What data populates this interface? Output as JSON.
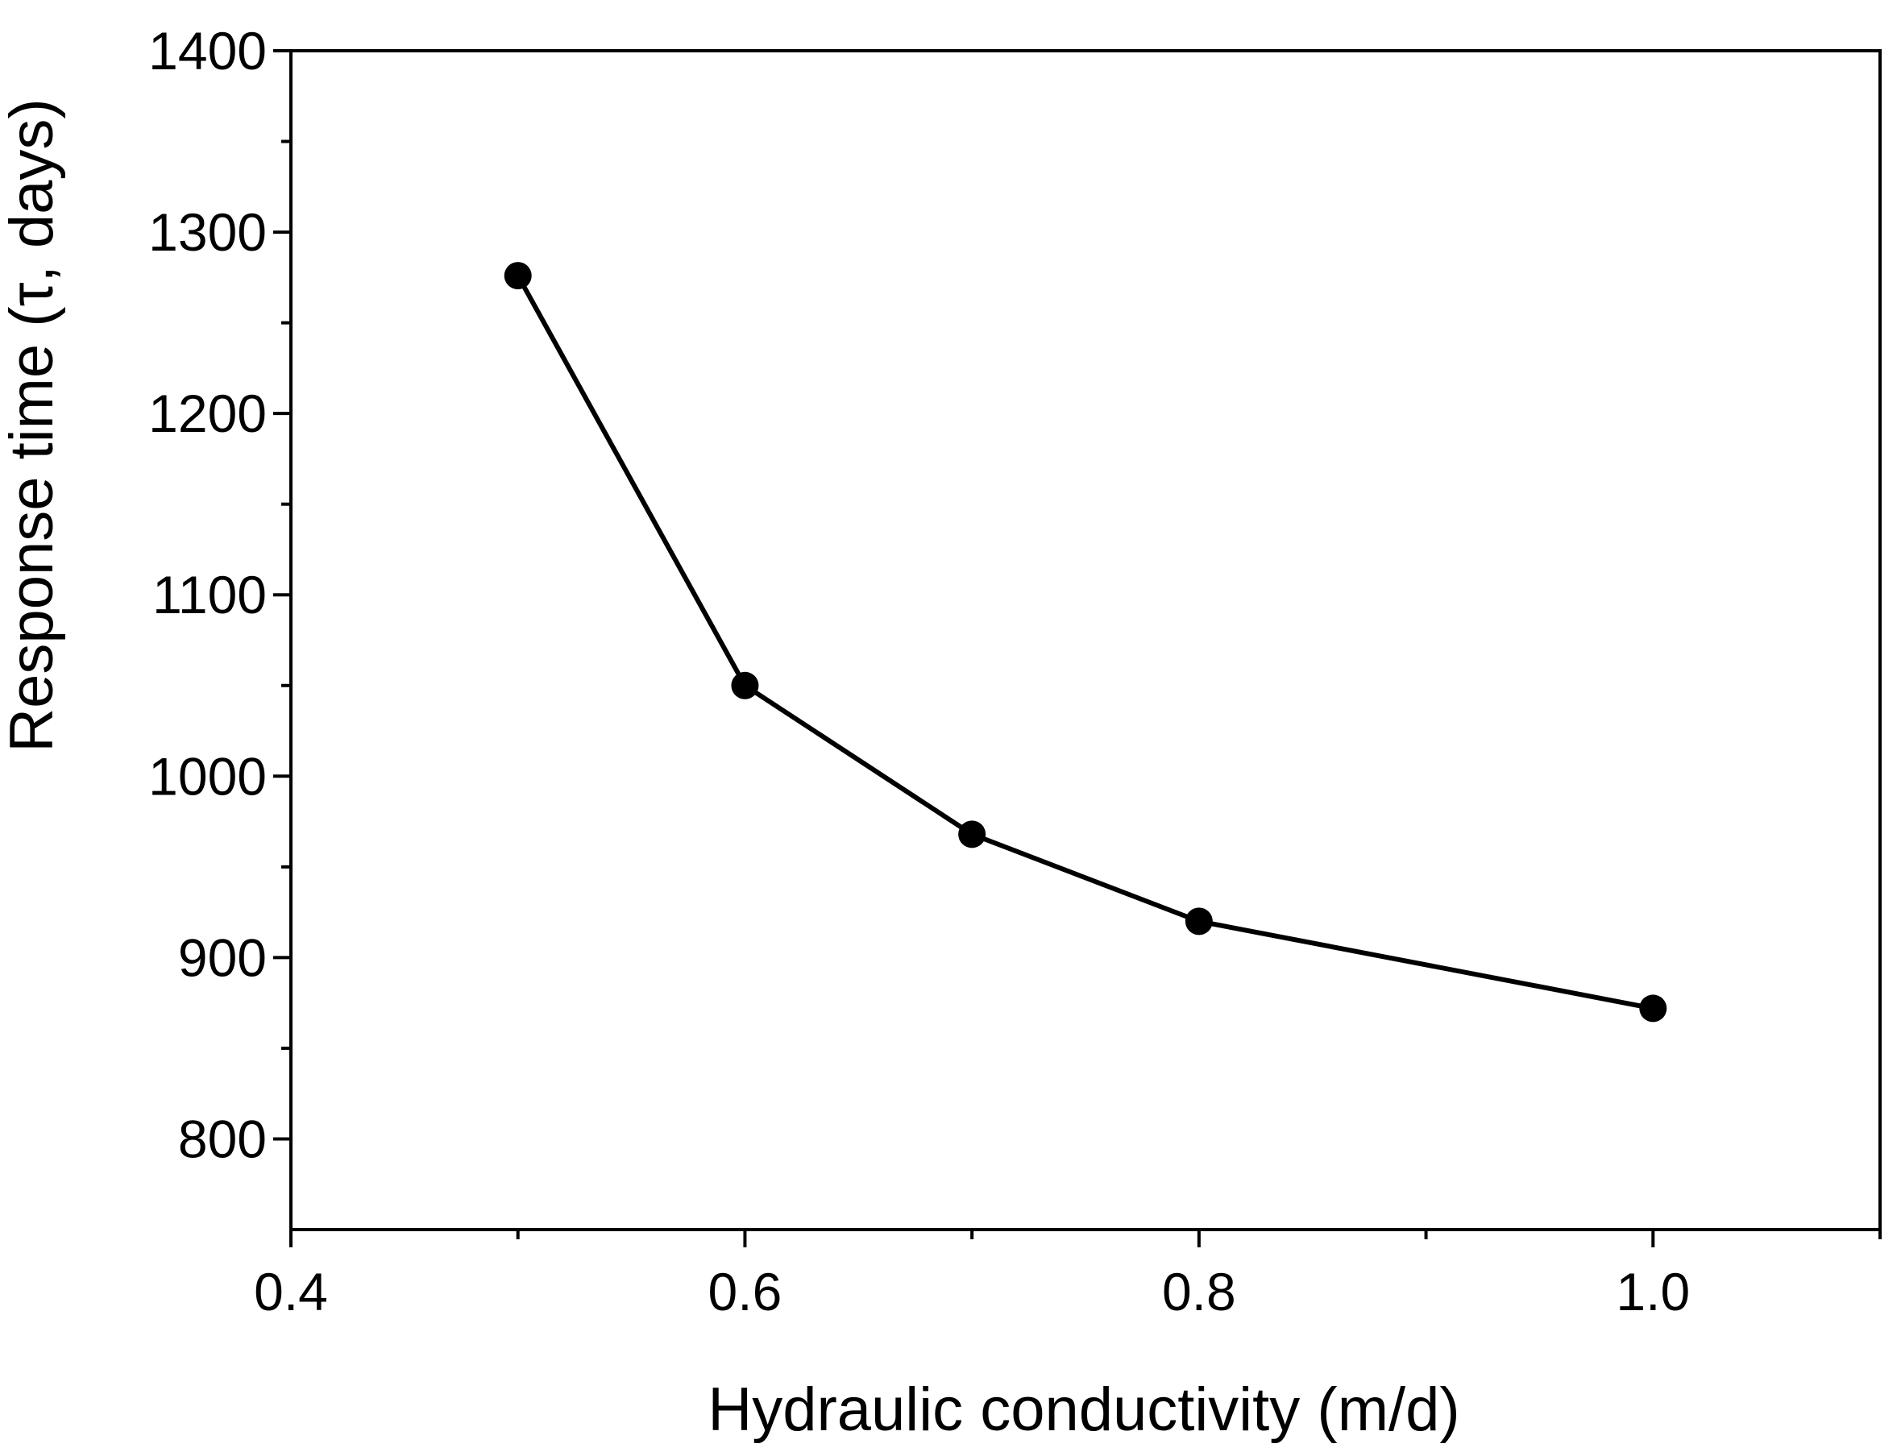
{
  "chart_data": {
    "type": "line",
    "xlabel": "Hydraulic conductivity (m/d)",
    "ylabel": "Response time (τ, days)",
    "xlim": [
      0.4,
      1.1
    ],
    "ylim": [
      750,
      1400
    ],
    "x_major_ticks": [
      0.4,
      0.6,
      0.8,
      1.0
    ],
    "x_tick_labels": [
      "0.4",
      "0.6",
      "0.8",
      "1.0"
    ],
    "x_minor_ticks": [
      0.5,
      0.7,
      0.9,
      1.1
    ],
    "y_major_ticks": [
      800,
      900,
      1000,
      1100,
      1200,
      1300,
      1400
    ],
    "y_tick_labels": [
      "800",
      "900",
      "1000",
      "1100",
      "1200",
      "1300",
      "1400"
    ],
    "y_minor_ticks": [
      850,
      950,
      1050,
      1150,
      1250,
      1350
    ],
    "grid": false,
    "series": [
      {
        "x": [
          0.5,
          0.6,
          0.7,
          0.8,
          1.0
        ],
        "y": [
          1276,
          1050,
          968,
          920,
          872
        ],
        "color": "#000000",
        "marker": "filled-circle"
      }
    ]
  }
}
